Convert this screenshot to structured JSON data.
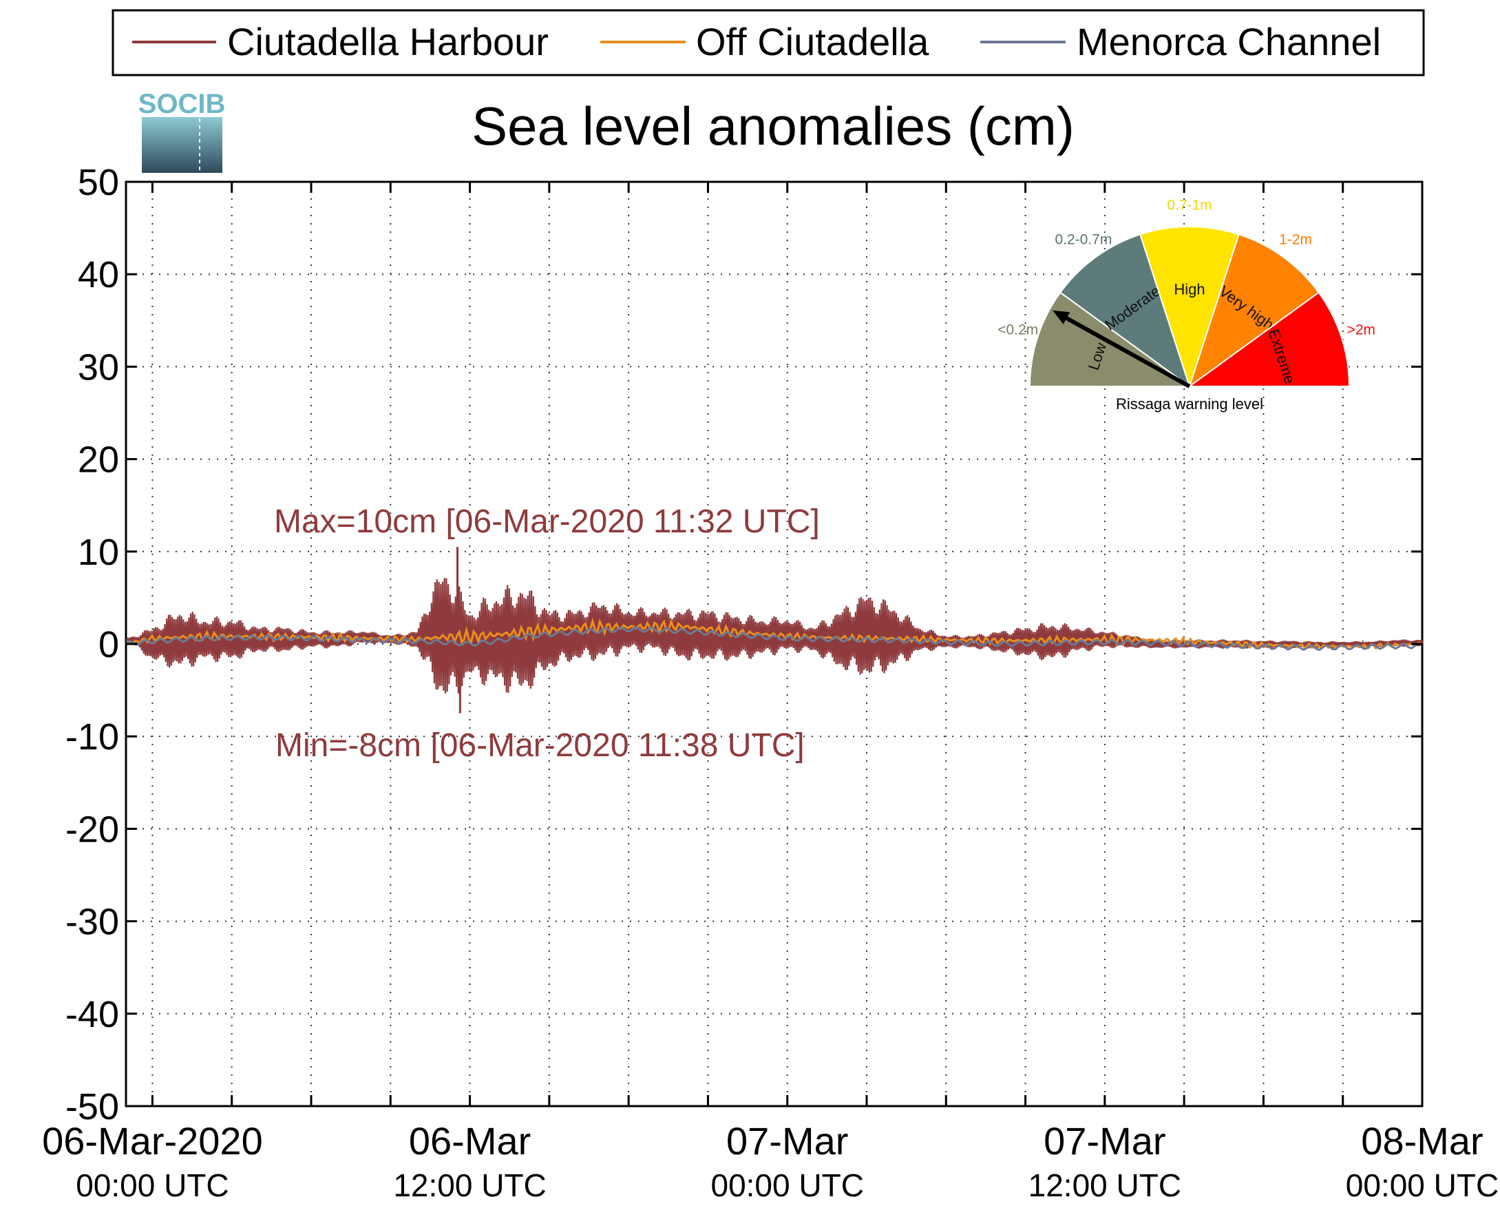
{
  "chart_data": {
    "type": "line",
    "title": "Sea level anomalies (cm)",
    "logo_text": "SOCIB",
    "ylim": [
      -50,
      50
    ],
    "yticks": [
      50,
      40,
      30,
      20,
      10,
      0,
      -10,
      -20,
      -30,
      -40,
      -50
    ],
    "ytick_labels": [
      "50",
      "40",
      "30",
      "20",
      "10",
      "0",
      "-10",
      "-20",
      "-30",
      "-40",
      "-50"
    ],
    "x_unit": "hours since 06-Mar-2020 00:00 UTC",
    "xlim": [
      -1,
      48
    ],
    "xticks": [
      {
        "x": 0,
        "line1": "06-Mar-2020",
        "line2": "00:00 UTC"
      },
      {
        "x": 12,
        "line1": "06-Mar",
        "line2": "12:00 UTC"
      },
      {
        "x": 24,
        "line1": "07-Mar",
        "line2": "00:00 UTC"
      },
      {
        "x": 36,
        "line1": "07-Mar",
        "line2": "12:00 UTC"
      },
      {
        "x": 48,
        "line1": "08-Mar",
        "line2": "00:00 UTC"
      }
    ],
    "grid": true,
    "legend_position": "top",
    "series": [
      {
        "name": "Ciutadella Harbour",
        "color": "#8f3a3c",
        "envelope_hours": [
          -1,
          0,
          1,
          2,
          3,
          4,
          5,
          6,
          7,
          8,
          9,
          10,
          10.5,
          11,
          11.5,
          12,
          13,
          14,
          15,
          16,
          17,
          18,
          19,
          20,
          21,
          22,
          23,
          24,
          25,
          26,
          27,
          28,
          29,
          30,
          31,
          32,
          33,
          34,
          35,
          36,
          37,
          38,
          39,
          40,
          41,
          42,
          43,
          44,
          45,
          46,
          47,
          48
        ],
        "envelope_upper": [
          0.5,
          2,
          4,
          3,
          3,
          2,
          2,
          1.5,
          1.5,
          1.5,
          1,
          1.5,
          6,
          9,
          7,
          4,
          6,
          7,
          4,
          4,
          5,
          4,
          4,
          4,
          4,
          3.5,
          3,
          3,
          2,
          4,
          6,
          4.5,
          2,
          1,
          1,
          1.5,
          2,
          2.5,
          2,
          1.5,
          1,
          0.5,
          0.5,
          0.5,
          0.5,
          0.4,
          0.4,
          0.3,
          0.3,
          0.3,
          0.5,
          0.5
        ],
        "envelope_lower": [
          0.5,
          -2,
          -3,
          -2,
          -2,
          -1,
          -1,
          -0.5,
          -0.5,
          0,
          0,
          -0.5,
          -4,
          -7,
          -6,
          -4,
          -5,
          -6,
          -3,
          -2,
          -2,
          -1,
          -1,
          -2,
          -2,
          -2,
          -1.5,
          -1,
          -1,
          -3,
          -4,
          -3,
          -1,
          -0.5,
          -0.5,
          -1,
          -1.5,
          -2,
          -1,
          -0.5,
          -0.5,
          -0.5,
          -0.5,
          -0.5,
          -0.5,
          -0.5,
          -0.5,
          -0.5,
          -0.4,
          -0.3,
          -0.3,
          -0.3
        ],
        "max_annotation": "Max=10cm [06-Mar-2020 11:32 UTC]",
        "min_annotation": "Min=-8cm [06-Mar-2020 11:38 UTC]",
        "max": {
          "x": 11.53,
          "y": 10.5
        },
        "min": {
          "x": 11.63,
          "y": -7.5
        }
      },
      {
        "name": "Off Ciutadella",
        "color": "#e8901e",
        "envelope_hours": [
          -1,
          0,
          2,
          4,
          6,
          8,
          10,
          11,
          12,
          14,
          16,
          18,
          20,
          22,
          24,
          26,
          28,
          30,
          32,
          34,
          36,
          38,
          40,
          42,
          44,
          46,
          48
        ],
        "envelope_upper": [
          0,
          1,
          1.3,
          1.2,
          1.2,
          1,
          0.8,
          1.5,
          1.5,
          2,
          2.5,
          2.5,
          2.5,
          1.8,
          1.2,
          1,
          1,
          0.8,
          0.7,
          0.8,
          1,
          0.8,
          0.5,
          0.2,
          0,
          0,
          0.3
        ],
        "envelope_lower": [
          0,
          0.2,
          0.4,
          0.4,
          0.3,
          0.2,
          0.2,
          0,
          0,
          0.5,
          1,
          1.2,
          1.3,
          0.8,
          0.5,
          0.3,
          0.2,
          0.1,
          0,
          0,
          0,
          0,
          -0.2,
          -0.4,
          -0.5,
          -0.5,
          -0.2
        ]
      },
      {
        "name": "Menorca Channel",
        "color": "#6c7a96",
        "hours": [
          -1,
          0,
          2,
          4,
          6,
          8,
          10,
          11,
          12,
          13,
          14,
          16,
          18,
          20,
          22,
          24,
          26,
          28,
          30,
          32,
          34,
          36,
          38,
          40,
          42,
          44,
          46,
          48
        ],
        "values": [
          0,
          0.3,
          0.6,
          0.7,
          0.6,
          0.4,
          0.3,
          0.2,
          0,
          0.3,
          0.8,
          1.3,
          1.6,
          1.4,
          1,
          0.6,
          0.5,
          0.4,
          0.2,
          0,
          0.1,
          0.2,
          0.1,
          -0.1,
          -0.3,
          -0.4,
          -0.3,
          -0.2
        ]
      }
    ]
  },
  "gauge": {
    "caption": "Rissaga warning level",
    "segments": [
      {
        "label": "Low",
        "range_label": "<0.2m",
        "color": "#8a8c6c",
        "label_color": "#7b7d62"
      },
      {
        "label": "Moderate",
        "range_label": "0.2-0.7m",
        "color": "#5e7b7b",
        "label_color": "#5a7474"
      },
      {
        "label": "High",
        "range_label": "0.7-1m",
        "color": "#ffe400",
        "label_color": "#f3d800"
      },
      {
        "label": "Very high",
        "range_label": "1-2m",
        "color": "#ff8200",
        "label_color": "#ff7a00"
      },
      {
        "label": "Extreme",
        "range_label": ">2m",
        "color": "#ff0000",
        "label_color": "#ee1010"
      }
    ],
    "needle_angle_deg": 151
  }
}
